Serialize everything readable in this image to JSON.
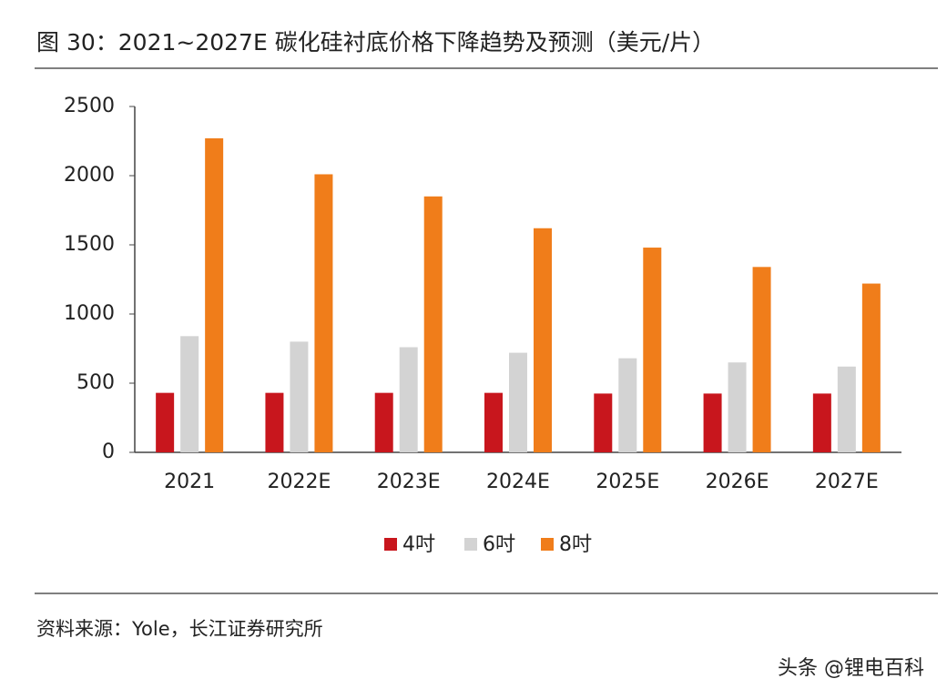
{
  "chart_data": {
    "type": "bar",
    "title": "图 30：2021~2027E 碳化硅衬底价格下降趋势及预测（美元/片）",
    "categories": [
      "2021",
      "2022E",
      "2023E",
      "2024E",
      "2025E",
      "2026E",
      "2027E"
    ],
    "series": [
      {
        "name": "4吋",
        "color": "#c8161d",
        "values": [
          430,
          430,
          430,
          430,
          425,
          425,
          425
        ]
      },
      {
        "name": "6吋",
        "color": "#d3d3d3",
        "values": [
          840,
          800,
          760,
          720,
          680,
          650,
          620
        ]
      },
      {
        "name": "8吋",
        "color": "#f07d1a",
        "values": [
          2270,
          2010,
          1850,
          1620,
          1480,
          1340,
          1220
        ]
      }
    ],
    "ylim": [
      0,
      2500
    ],
    "yticks": [
      0,
      500,
      1000,
      1500,
      2000,
      2500
    ],
    "grid": false,
    "legend": "bottom",
    "source": "资料来源：Yole，长江证券研究所",
    "watermark": "头条 @锂电百科"
  }
}
